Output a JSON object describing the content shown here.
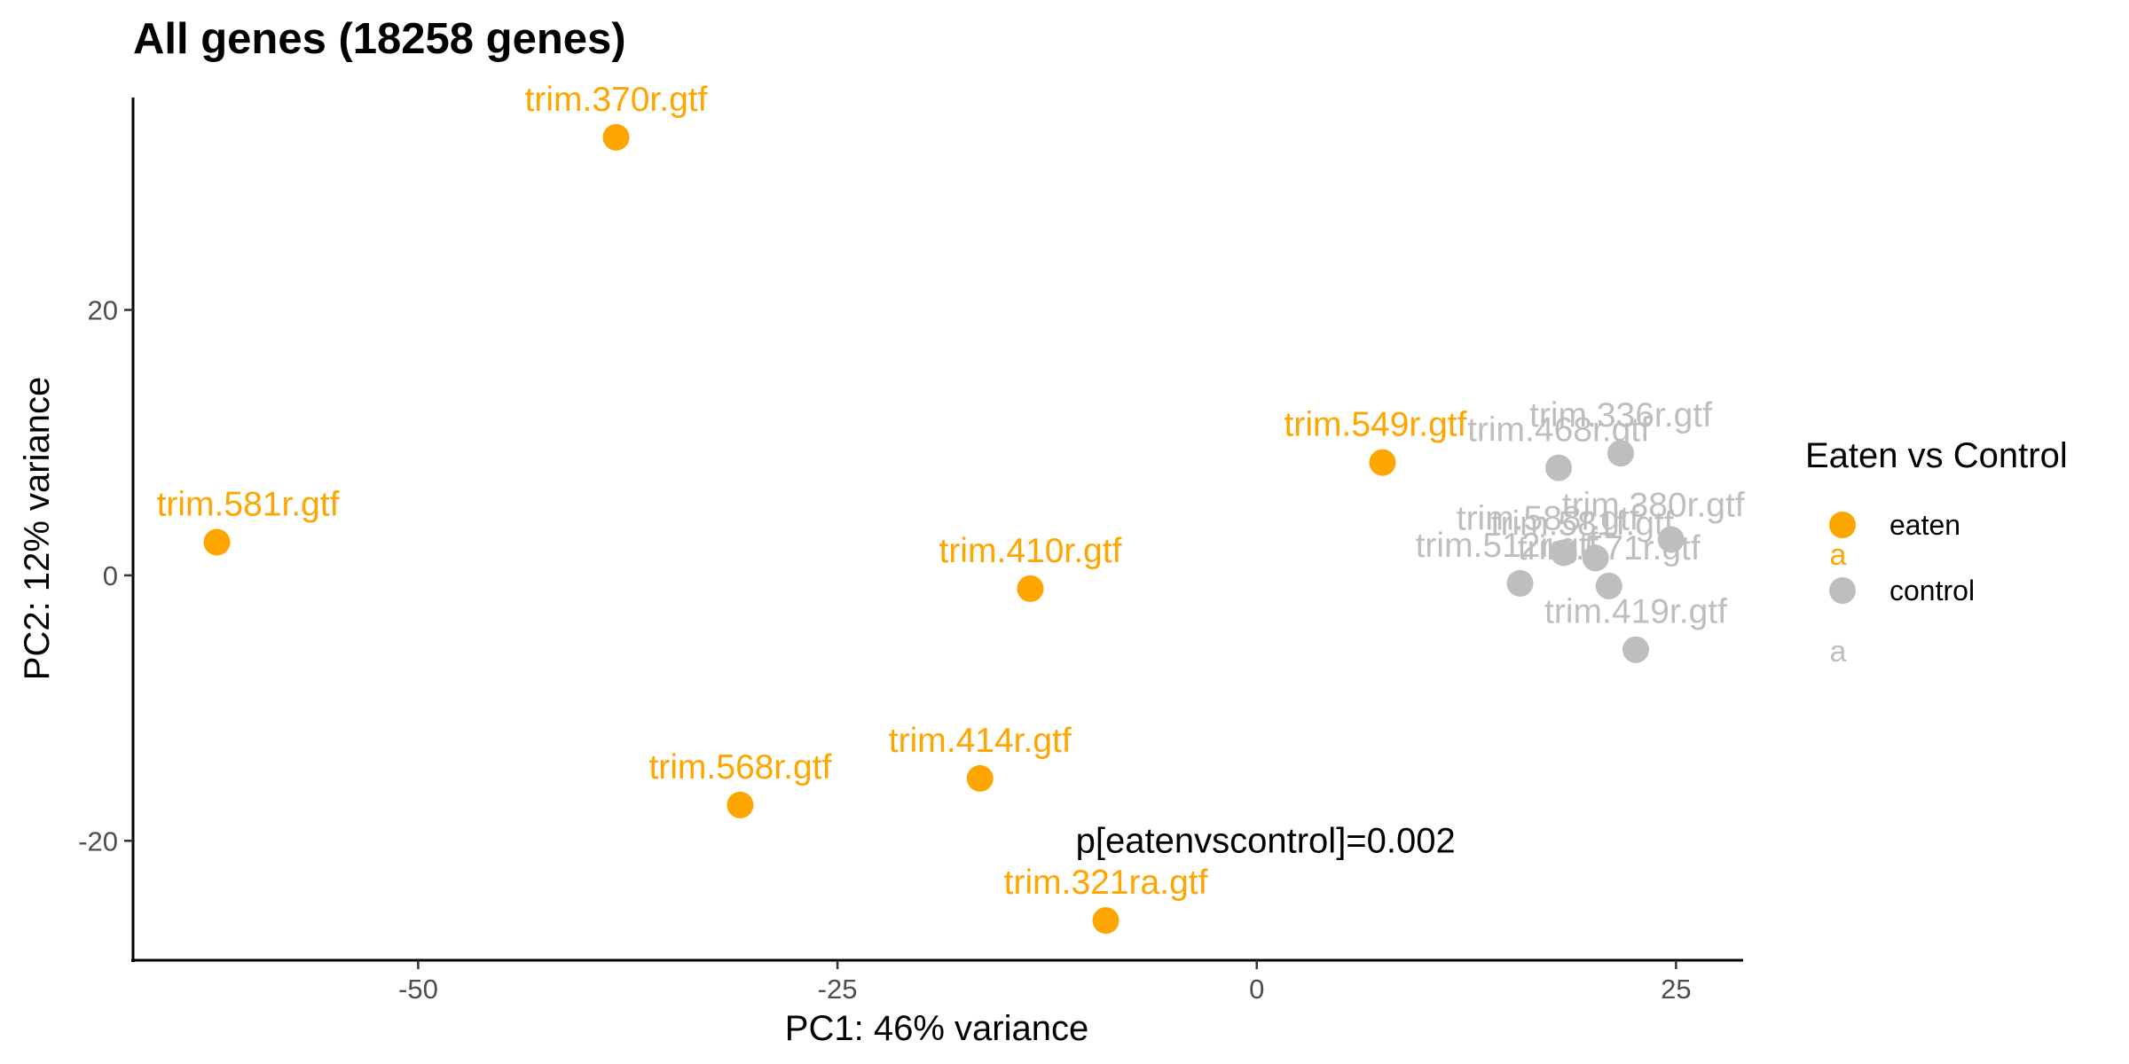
{
  "chart_data": {
    "type": "scatter",
    "title": "All genes (18258 genes)",
    "xlabel": "PC1: 46% variance",
    "ylabel": "PC2: 12% variance",
    "xlim": [
      -67,
      29
    ],
    "ylim": [
      -29,
      36
    ],
    "xticks": [
      -50,
      -25,
      0,
      25
    ],
    "yticks": [
      20,
      0,
      -20
    ],
    "xtick_labels": [
      "-50",
      "-25",
      "0",
      "25"
    ],
    "ytick_labels": [
      "20",
      "0",
      "-20"
    ],
    "grid": false,
    "legend": {
      "title": "Eaten vs Control",
      "position": "right",
      "entries": [
        {
          "label": "eaten",
          "color": "#FFA500",
          "glyph": "a"
        },
        {
          "label": "control",
          "color": "#BEBEBE",
          "glyph": "a"
        }
      ]
    },
    "series": [
      {
        "name": "eaten",
        "color": "#FFA500",
        "points": [
          {
            "x": -38.2,
            "y": 33.0,
            "label": "trim.370r.gtf"
          },
          {
            "x": -62.0,
            "y": 2.5,
            "label": "trim.581r.gtf"
          },
          {
            "x": 7.5,
            "y": 8.5,
            "label": "trim.549r.gtf"
          },
          {
            "x": -13.5,
            "y": -1.0,
            "label": "trim.410r.gtf"
          },
          {
            "x": -16.5,
            "y": -15.3,
            "label": "trim.414r.gtf"
          },
          {
            "x": -30.8,
            "y": -17.3,
            "label": "trim.568r.gtf"
          },
          {
            "x": -9.0,
            "y": -26.0,
            "label": "trim.321ra.gtf"
          }
        ]
      },
      {
        "name": "control",
        "color": "#BEBEBE",
        "points": [
          {
            "x": 21.7,
            "y": 9.2,
            "label": "trim.336r.gtf"
          },
          {
            "x": 18.0,
            "y": 8.1,
            "label": "trim.468r.gtf"
          },
          {
            "x": 24.7,
            "y": 2.7,
            "label": "trim.380r.gtf"
          },
          {
            "x": 18.3,
            "y": 1.7,
            "label": "trim.588r.gtf"
          },
          {
            "x": 20.2,
            "y": 1.3,
            "label": "trim.581f.gtf"
          },
          {
            "x": 15.7,
            "y": -0.6,
            "label": "trim.512r.gtf"
          },
          {
            "x": 21.0,
            "y": -0.8,
            "label": "trim.571r.gtf"
          },
          {
            "x": 22.6,
            "y": -5.6,
            "label": "trim.419r.gtf"
          }
        ]
      }
    ],
    "annotations": [
      {
        "text": "p[eatenvscontrol]=0.002",
        "x": 0,
        "y": -20
      }
    ]
  }
}
